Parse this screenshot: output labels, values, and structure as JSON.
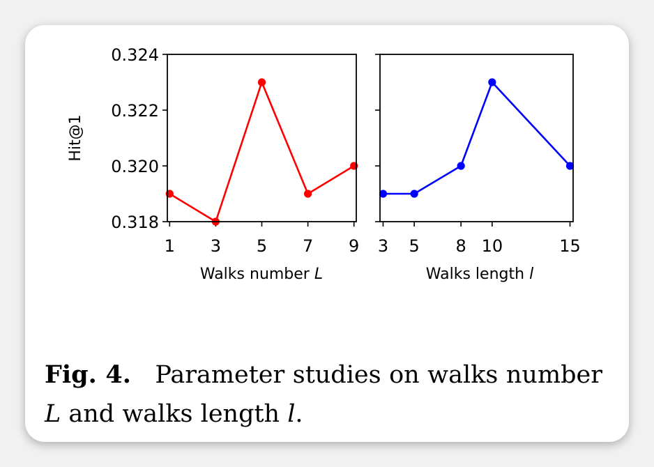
{
  "chart_data": [
    {
      "type": "line",
      "x": [
        1,
        3,
        5,
        7,
        9
      ],
      "series": [
        {
          "values": [
            0.319,
            0.318,
            0.323,
            0.319,
            0.32
          ],
          "color": "#ff0000"
        }
      ],
      "xticks": [
        "1",
        "3",
        "5",
        "7",
        "9"
      ],
      "xtick_values": [
        1,
        3,
        5,
        7,
        9
      ],
      "xlabel": "Walks number",
      "xlabel_var": "L",
      "ylabel": "Hit@1",
      "yticks": [
        "0.318",
        "0.320",
        "0.322",
        "0.324"
      ],
      "ytick_values": [
        0.318,
        0.32,
        0.322,
        0.324
      ],
      "xlim": [
        0.9,
        9.1
      ],
      "ylim": [
        0.318,
        0.324
      ],
      "grid": false
    },
    {
      "type": "line",
      "x": [
        3,
        5,
        8,
        10,
        15
      ],
      "series": [
        {
          "values": [
            0.319,
            0.319,
            0.32,
            0.323,
            0.32
          ],
          "color": "#0000ff"
        }
      ],
      "xticks": [
        "3",
        "5",
        "8",
        "10",
        "15"
      ],
      "xtick_values": [
        3,
        5,
        8,
        10,
        15
      ],
      "xlabel": "Walks length",
      "xlabel_var": "l",
      "ylabel": "",
      "yticks": [],
      "ytick_values": [
        0.318,
        0.32,
        0.322,
        0.324
      ],
      "xlim": [
        2.8,
        15.2
      ],
      "ylim": [
        0.318,
        0.324
      ],
      "grid": false
    }
  ],
  "caption": {
    "label": "Fig. 4.",
    "text_1": "Parameter studies on walks number ",
    "var_1": "L",
    "text_2": " and walks length ",
    "var_2": "l",
    "text_3": "."
  }
}
